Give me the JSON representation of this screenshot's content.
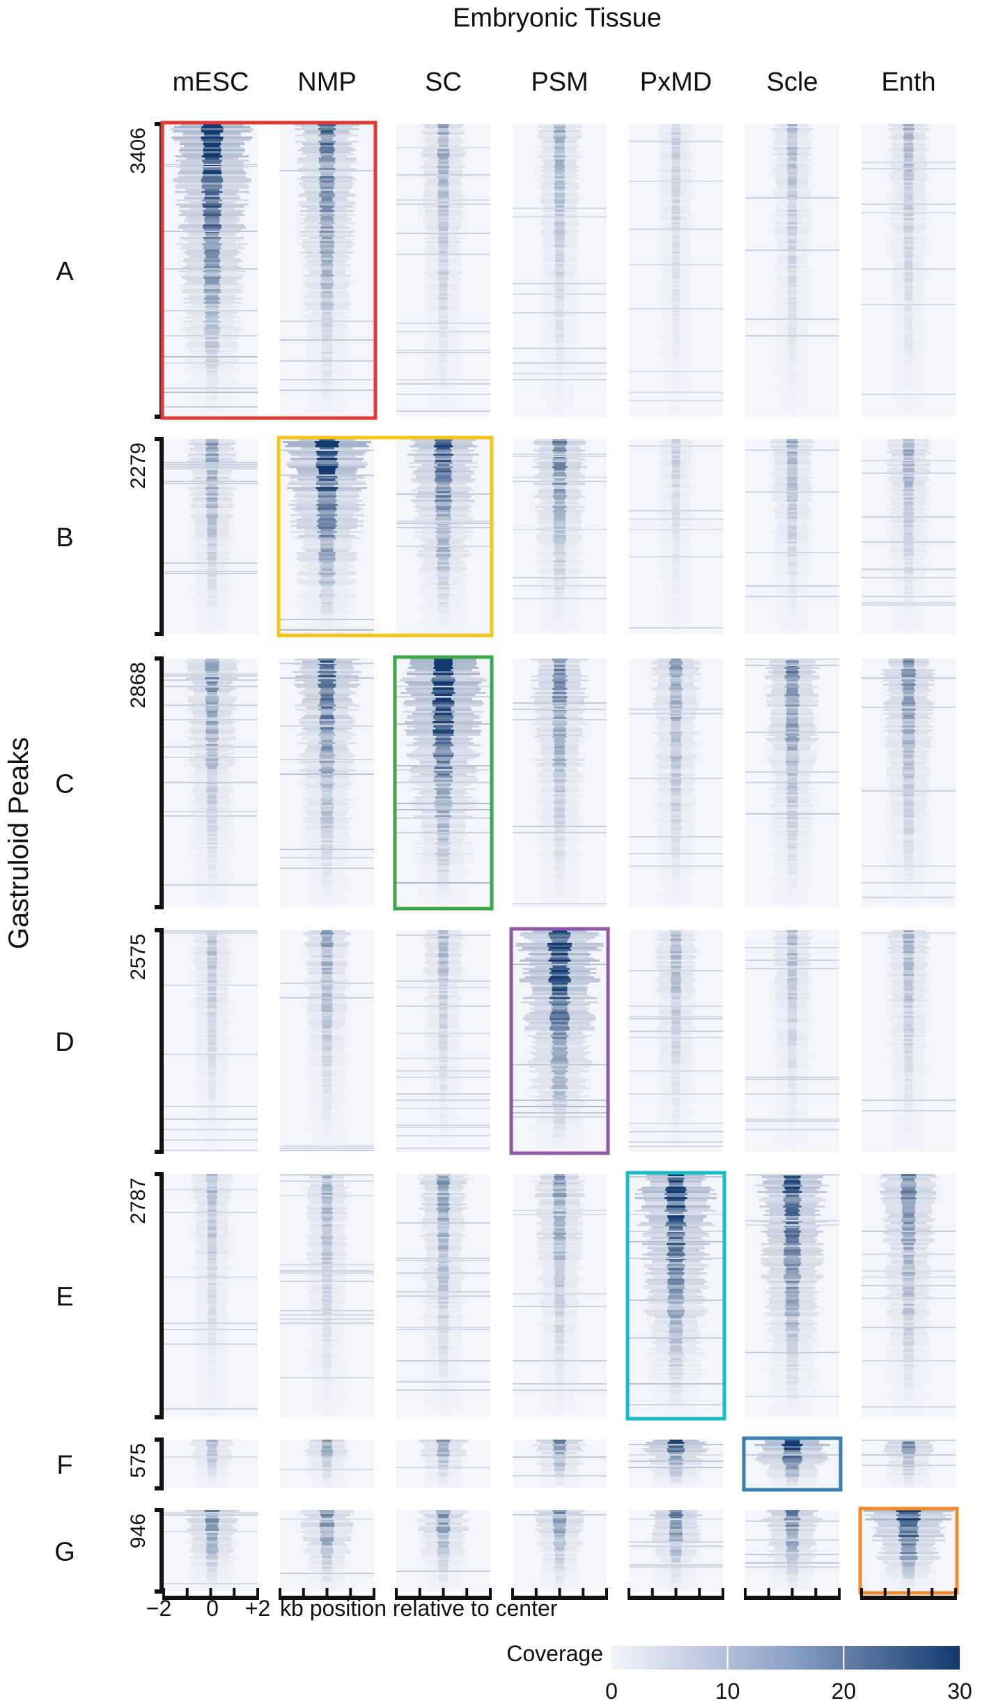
{
  "chart_data": {
    "type": "heatmap",
    "title": "Embryonic Tissue",
    "ylabel": "Gastruloid Peaks",
    "columns": [
      "mESC",
      "NMP",
      "SC",
      "PSM",
      "PxMD",
      "Scle",
      "Enth"
    ],
    "rows": [
      {
        "label": "A",
        "count": "3406"
      },
      {
        "label": "B",
        "count": "2279"
      },
      {
        "label": "C",
        "count": "2868"
      },
      {
        "label": "D",
        "count": "2575"
      },
      {
        "label": "E",
        "count": "2787"
      },
      {
        "label": "F",
        "count": "575"
      },
      {
        "label": "G",
        "count": "946"
      }
    ],
    "highlights": [
      {
        "row": "A",
        "columns": [
          "mESC",
          "NMP"
        ],
        "color": "#e53935"
      },
      {
        "row": "B",
        "columns": [
          "NMP",
          "SC"
        ],
        "color": "#f5c518"
      },
      {
        "row": "C",
        "columns": [
          "SC"
        ],
        "color": "#3aa84a"
      },
      {
        "row": "D",
        "columns": [
          "PSM"
        ],
        "color": "#8e5aa5"
      },
      {
        "row": "E",
        "columns": [
          "PxMD"
        ],
        "color": "#16bcc8"
      },
      {
        "row": "F",
        "columns": [
          "Scle"
        ],
        "color": "#3a7fb4"
      },
      {
        "row": "G",
        "columns": [
          "Enth"
        ],
        "color": "#f28a2e"
      }
    ],
    "intensity": [
      [
        0.95,
        0.65,
        0.38,
        0.35,
        0.22,
        0.3,
        0.3
      ],
      [
        0.45,
        1.0,
        0.75,
        0.55,
        0.2,
        0.35,
        0.38
      ],
      [
        0.5,
        0.7,
        1.0,
        0.55,
        0.45,
        0.55,
        0.5
      ],
      [
        0.28,
        0.4,
        0.3,
        1.0,
        0.35,
        0.3,
        0.35
      ],
      [
        0.3,
        0.35,
        0.45,
        0.45,
        0.95,
        0.8,
        0.55
      ],
      [
        0.35,
        0.4,
        0.45,
        0.5,
        0.75,
        1.0,
        0.55
      ],
      [
        0.55,
        0.55,
        0.5,
        0.5,
        0.55,
        0.6,
        1.0
      ]
    ],
    "xaxis": {
      "ticks": [
        "−2",
        "0",
        "+2"
      ],
      "label": "kb position relative to center"
    },
    "colorbar": {
      "label": "Coverage",
      "ticks": [
        0,
        10,
        20,
        30
      ],
      "range": [
        0,
        30
      ],
      "colors": [
        "#f4f5fb",
        "#123a6e"
      ]
    }
  }
}
